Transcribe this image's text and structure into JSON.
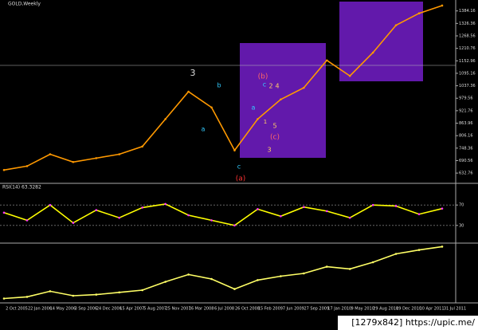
{
  "chart_data": [
    {
      "type": "line",
      "title": "GOLD,Weekly",
      "color": "#ff9900",
      "values": [
        647,
        665,
        720,
        684,
        702,
        720,
        756,
        883,
        1010,
        937,
        738,
        883,
        974,
        1028,
        1155,
        1083,
        1191,
        1318,
        1373,
        1409
      ],
      "ylim": [
        600,
        1420
      ],
      "yticks": [
        1384.16,
        1326.36,
        1268.56,
        1210.76,
        1152.96,
        1095.16,
        1037.36,
        979.56,
        921.76,
        863.96,
        806.16,
        748.36,
        690.56,
        632.76
      ],
      "annotations": [
        "3",
        "b",
        "a",
        "c",
        "(b)",
        "2",
        "4",
        "a",
        "c",
        "1",
        "5",
        "(c)",
        "3",
        "(a)"
      ]
    },
    {
      "type": "line",
      "title": "RSI(14) 63.3282",
      "color": "#ffff00",
      "values": [
        55,
        40,
        70,
        35,
        60,
        45,
        65,
        72,
        50,
        40,
        30,
        62,
        48,
        66,
        58,
        45,
        70,
        68,
        52,
        63
      ],
      "ylim": [
        0,
        100
      ],
      "yticks": [
        70,
        30
      ]
    },
    {
      "type": "line",
      "color": "#ffff66",
      "categories": [
        "2 Oct 2005",
        "22 Jan 2006",
        "14 May 2006",
        "3 Sep 2006",
        "24 Dec 2006",
        "15 Apr 2007",
        "5 Aug 2007",
        "25 Nov 2007",
        "16 Mar 2008",
        "6 Jul 2008",
        "26 Oct 2008",
        "15 Feb 2009",
        "7 Jun 2009",
        "27 Sep 2009",
        "17 Jan 2010",
        "9 May 2010",
        "29 Aug 2010",
        "19 Dec 2010",
        "10 Apr 2011",
        "31 Jul 2011"
      ],
      "values": [
        5,
        8,
        18,
        10,
        12,
        16,
        20,
        35,
        48,
        40,
        22,
        38,
        45,
        50,
        62,
        58,
        70,
        85,
        92,
        98
      ],
      "ylim": [
        0,
        100
      ]
    }
  ],
  "watermark": "[1279x842] https://upic.me/"
}
